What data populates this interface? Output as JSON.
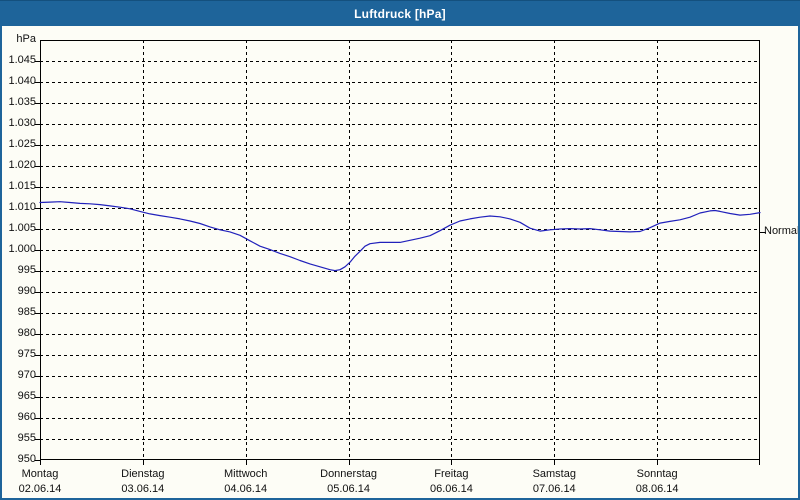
{
  "window": {
    "title": "Luftdruck [hPa]"
  },
  "colors": {
    "titlebar": "#1e649a",
    "window_border": "#1e649a",
    "background": "#fdfdf6",
    "grid": "#000000",
    "axis": "#000000",
    "line": "#2121bb"
  },
  "chart_data": {
    "type": "line",
    "title": "Luftdruck [hPa]",
    "ylabel": "hPa",
    "xlabel": "",
    "ylim": [
      950,
      1050
    ],
    "ytick_step": 5,
    "x_span_days": 7,
    "grid": true,
    "legend_position": "none",
    "yticks": [
      {
        "v": 1045,
        "label": "1.045"
      },
      {
        "v": 1040,
        "label": "1.040"
      },
      {
        "v": 1035,
        "label": "1.035"
      },
      {
        "v": 1030,
        "label": "1.030"
      },
      {
        "v": 1025,
        "label": "1.025"
      },
      {
        "v": 1020,
        "label": "1.020"
      },
      {
        "v": 1015,
        "label": "1.015"
      },
      {
        "v": 1010,
        "label": "1.010"
      },
      {
        "v": 1005,
        "label": "1.005"
      },
      {
        "v": 1000,
        "label": "1.000"
      },
      {
        "v": 995,
        "label": "995"
      },
      {
        "v": 990,
        "label": "990"
      },
      {
        "v": 985,
        "label": "985"
      },
      {
        "v": 980,
        "label": "980"
      },
      {
        "v": 975,
        "label": "975"
      },
      {
        "v": 970,
        "label": "970"
      },
      {
        "v": 965,
        "label": "965"
      },
      {
        "v": 960,
        "label": "960"
      },
      {
        "v": 955,
        "label": "955"
      },
      {
        "v": 950,
        "label": "950"
      }
    ],
    "xticks": [
      {
        "day": 0,
        "name": "Montag",
        "date": "02.06.14"
      },
      {
        "day": 1,
        "name": "Dienstag",
        "date": "03.06.14"
      },
      {
        "day": 2,
        "name": "Mittwoch",
        "date": "04.06.14"
      },
      {
        "day": 3,
        "name": "Donnerstag",
        "date": "05.06.14"
      },
      {
        "day": 4,
        "name": "Freitag",
        "date": "06.06.14"
      },
      {
        "day": 5,
        "name": "Samstag",
        "date": "07.06.14"
      },
      {
        "day": 6,
        "name": "Sonntag",
        "date": "08.06.14"
      }
    ],
    "normal_marker": {
      "label": "Normal",
      "value": 1004.3
    },
    "series": [
      {
        "name": "Luftdruck",
        "color": "#2121bb",
        "points": [
          [
            0.0,
            1011.3
          ],
          [
            0.097,
            1011.4
          ],
          [
            0.194,
            1011.5
          ],
          [
            0.292,
            1011.3
          ],
          [
            0.389,
            1011.1
          ],
          [
            0.486,
            1011.0
          ],
          [
            0.583,
            1010.8
          ],
          [
            0.681,
            1010.5
          ],
          [
            0.778,
            1010.2
          ],
          [
            0.875,
            1009.8
          ],
          [
            0.972,
            1009.2
          ],
          [
            1.069,
            1008.6
          ],
          [
            1.167,
            1008.2
          ],
          [
            1.264,
            1007.8
          ],
          [
            1.361,
            1007.4
          ],
          [
            1.458,
            1006.9
          ],
          [
            1.556,
            1006.3
          ],
          [
            1.653,
            1005.5
          ],
          [
            1.75,
            1004.8
          ],
          [
            1.847,
            1004.3
          ],
          [
            1.944,
            1003.5
          ],
          [
            2.042,
            1002.2
          ],
          [
            2.139,
            1000.9
          ],
          [
            2.236,
            1000.1
          ],
          [
            2.333,
            999.2
          ],
          [
            2.431,
            998.4
          ],
          [
            2.528,
            997.5
          ],
          [
            2.625,
            996.7
          ],
          [
            2.722,
            996.0
          ],
          [
            2.819,
            995.3
          ],
          [
            2.868,
            995.1
          ],
          [
            2.917,
            995.3
          ],
          [
            2.965,
            996.0
          ],
          [
            3.014,
            997.1
          ],
          [
            3.062,
            998.5
          ],
          [
            3.111,
            999.7
          ],
          [
            3.16,
            1000.9
          ],
          [
            3.208,
            1001.5
          ],
          [
            3.306,
            1001.8
          ],
          [
            3.403,
            1001.8
          ],
          [
            3.5,
            1001.8
          ],
          [
            3.597,
            1002.3
          ],
          [
            3.694,
            1002.8
          ],
          [
            3.792,
            1003.4
          ],
          [
            3.889,
            1004.6
          ],
          [
            3.986,
            1005.9
          ],
          [
            4.083,
            1006.9
          ],
          [
            4.181,
            1007.4
          ],
          [
            4.278,
            1007.8
          ],
          [
            4.375,
            1008.1
          ],
          [
            4.472,
            1007.9
          ],
          [
            4.569,
            1007.4
          ],
          [
            4.667,
            1006.6
          ],
          [
            4.764,
            1005.2
          ],
          [
            4.861,
            1004.5
          ],
          [
            4.958,
            1004.8
          ],
          [
            5.056,
            1005.0
          ],
          [
            5.153,
            1005.1
          ],
          [
            5.25,
            1005.0
          ],
          [
            5.347,
            1005.1
          ],
          [
            5.444,
            1004.8
          ],
          [
            5.542,
            1004.5
          ],
          [
            5.639,
            1004.4
          ],
          [
            5.736,
            1004.3
          ],
          [
            5.833,
            1004.4
          ],
          [
            5.931,
            1005.3
          ],
          [
            6.028,
            1006.4
          ],
          [
            6.125,
            1006.8
          ],
          [
            6.222,
            1007.2
          ],
          [
            6.319,
            1007.8
          ],
          [
            6.417,
            1008.8
          ],
          [
            6.514,
            1009.3
          ],
          [
            6.563,
            1009.4
          ],
          [
            6.611,
            1009.2
          ],
          [
            6.708,
            1008.7
          ],
          [
            6.806,
            1008.3
          ],
          [
            6.903,
            1008.5
          ],
          [
            7.0,
            1008.9
          ]
        ]
      }
    ]
  }
}
